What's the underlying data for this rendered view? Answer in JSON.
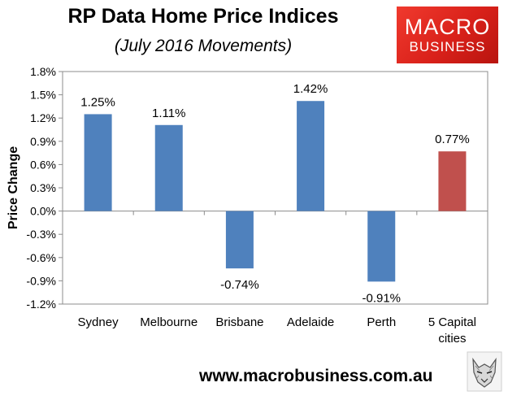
{
  "header": {
    "title": "RP Data Home Price Indices",
    "subtitle": "(July 2016 Movements)"
  },
  "logo": {
    "line1": "MACRO",
    "line2": "BUSINESS",
    "color": "#e8281e"
  },
  "footer": {
    "url": "www.macrobusiness.com.au",
    "emblem": "wolf-emblem"
  },
  "chart_data": {
    "type": "bar",
    "title": "RP Data Home Price Indices",
    "subtitle": "(July 2016 Movements)",
    "xlabel": "",
    "ylabel": "Price Change",
    "ylim": [
      -0.012,
      0.018
    ],
    "yticks": [
      {
        "value": 0.018,
        "label": "1.8%"
      },
      {
        "value": 0.015,
        "label": "1.5%"
      },
      {
        "value": 0.012,
        "label": "1.2%"
      },
      {
        "value": 0.009,
        "label": "0.9%"
      },
      {
        "value": 0.006,
        "label": "0.6%"
      },
      {
        "value": 0.003,
        "label": "0.3%"
      },
      {
        "value": 0.0,
        "label": "0.0%"
      },
      {
        "value": -0.003,
        "label": "-0.3%"
      },
      {
        "value": -0.006,
        "label": "-0.6%"
      },
      {
        "value": -0.009,
        "label": "-0.9%"
      },
      {
        "value": -0.012,
        "label": "-1.2%"
      }
    ],
    "grid": false,
    "legend": "none",
    "categories": [
      [
        "Sydney"
      ],
      [
        "Melbourne"
      ],
      [
        "Brisbane"
      ],
      [
        "Adelaide"
      ],
      [
        "Perth"
      ],
      [
        "5 Capital",
        "cities"
      ]
    ],
    "values": [
      0.0125,
      0.0111,
      -0.0074,
      0.0142,
      -0.0091,
      0.0077
    ],
    "data_labels": [
      "1.25%",
      "1.11%",
      "-0.74%",
      "1.42%",
      "-0.91%",
      "0.77%"
    ],
    "colors": [
      "#4f81bd",
      "#4f81bd",
      "#4f81bd",
      "#4f81bd",
      "#4f81bd",
      "#c0504d"
    ]
  }
}
